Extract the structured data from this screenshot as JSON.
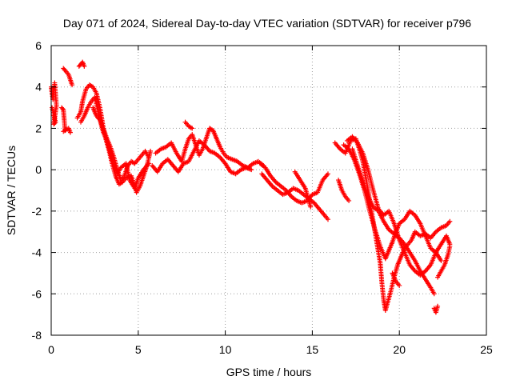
{
  "chart_data": {
    "type": "scatter",
    "title": "Day 071 of 2024, Sidereal Day-to-day VTEC variation (SDTVAR) for receiver p796",
    "xlabel": "GPS time / hours",
    "ylabel": "SDTVAR / TECUs",
    "xlim": [
      0,
      25
    ],
    "ylim": [
      -8,
      6
    ],
    "xticks": [
      0,
      5,
      10,
      15,
      20,
      25
    ],
    "yticks": [
      -8,
      -6,
      -4,
      -2,
      0,
      2,
      4,
      6
    ],
    "grid": true,
    "marker": "+",
    "color": "#ff0000",
    "series": [
      {
        "name": "SDTVAR",
        "tracks": [
          [
            [
              0.0,
              4.0
            ],
            [
              0.1,
              3.4
            ],
            [
              0.2,
              4.2
            ],
            [
              0.3,
              3.1
            ],
            [
              0.15,
              2.2
            ],
            [
              0.25,
              2.3
            ],
            [
              0.05,
              3.0
            ]
          ],
          [
            [
              0.7,
              4.9
            ],
            [
              0.8,
              4.8
            ],
            [
              1.0,
              4.6
            ],
            [
              1.2,
              4.1
            ]
          ],
          [
            [
              0.6,
              3.0
            ],
            [
              0.7,
              2.9
            ],
            [
              0.8,
              1.9
            ],
            [
              0.7,
              1.85
            ],
            [
              1.0,
              2.0
            ],
            [
              1.1,
              1.8
            ]
          ],
          [
            [
              1.6,
              5.0
            ],
            [
              1.7,
              5.1
            ],
            [
              1.8,
              5.2
            ],
            [
              1.9,
              5.0
            ]
          ],
          [
            [
              1.5,
              2.5
            ],
            [
              1.7,
              2.8
            ],
            [
              1.8,
              3.3
            ],
            [
              2.0,
              3.9
            ],
            [
              2.2,
              4.1
            ],
            [
              2.4,
              4.0
            ],
            [
              2.6,
              3.7
            ],
            [
              2.8,
              3.0
            ],
            [
              3.0,
              2.0
            ],
            [
              3.2,
              1.5
            ],
            [
              3.4,
              1.1
            ],
            [
              3.6,
              0.6
            ],
            [
              3.8,
              0.0
            ],
            [
              4.0,
              -0.5
            ],
            [
              4.2,
              -0.3
            ],
            [
              4.4,
              0.2
            ],
            [
              4.6,
              0.4
            ],
            [
              4.8,
              0.3
            ],
            [
              5.0,
              0.5
            ],
            [
              5.2,
              0.7
            ],
            [
              5.4,
              0.9
            ],
            [
              5.6,
              0.6
            ]
          ],
          [
            [
              1.7,
              2.3
            ],
            [
              1.9,
              2.6
            ],
            [
              2.1,
              3.0
            ],
            [
              2.3,
              3.3
            ],
            [
              2.5,
              3.5
            ],
            [
              2.7,
              2.8
            ],
            [
              2.9,
              2.2
            ],
            [
              3.1,
              1.6
            ],
            [
              3.3,
              1.0
            ],
            [
              3.5,
              0.3
            ],
            [
              3.7,
              -0.3
            ],
            [
              3.9,
              -0.7
            ],
            [
              4.1,
              -0.6
            ],
            [
              4.3,
              -0.4
            ],
            [
              4.6,
              -0.3
            ],
            [
              4.9,
              -1.1
            ],
            [
              5.1,
              -0.8
            ],
            [
              5.3,
              -0.3
            ],
            [
              5.5,
              0.2
            ],
            [
              5.7,
              0.9
            ]
          ],
          [
            [
              2.4,
              3.0
            ],
            [
              2.6,
              2.6
            ],
            [
              2.8,
              2.4
            ],
            [
              3.0,
              1.8
            ],
            [
              3.2,
              1.4
            ],
            [
              3.5,
              0.5
            ],
            [
              3.8,
              -0.2
            ],
            [
              4.0,
              0.1
            ],
            [
              4.3,
              0.3
            ],
            [
              4.5,
              -0.5
            ],
            [
              4.8,
              -0.9
            ],
            [
              5.0,
              -0.4
            ],
            [
              5.3,
              0.0
            ],
            [
              5.6,
              0.3
            ]
          ],
          [
            [
              6.0,
              0.8
            ],
            [
              6.3,
              1.0
            ],
            [
              6.6,
              1.1
            ],
            [
              6.9,
              1.3
            ],
            [
              7.2,
              0.8
            ],
            [
              7.5,
              0.4
            ],
            [
              7.7,
              1.0
            ],
            [
              7.9,
              1.5
            ],
            [
              8.1,
              1.7
            ],
            [
              8.3,
              1.2
            ],
            [
              8.5,
              0.7
            ],
            [
              8.7,
              1.0
            ],
            [
              8.9,
              1.5
            ],
            [
              9.1,
              2.0
            ],
            [
              9.3,
              1.9
            ],
            [
              9.5,
              1.5
            ],
            [
              9.7,
              1.1
            ],
            [
              9.9,
              0.8
            ],
            [
              10.1,
              0.6
            ],
            [
              10.4,
              0.5
            ],
            [
              10.7,
              0.4
            ],
            [
              11.0,
              0.2
            ],
            [
              11.3,
              0.1
            ],
            [
              11.6,
              0.3
            ],
            [
              11.9,
              0.4
            ],
            [
              12.2,
              0.2
            ]
          ],
          [
            [
              5.8,
              0.2
            ],
            [
              6.1,
              -0.1
            ],
            [
              6.4,
              0.3
            ],
            [
              6.7,
              0.5
            ],
            [
              7.0,
              0.2
            ],
            [
              7.3,
              -0.1
            ],
            [
              7.6,
              0.3
            ],
            [
              7.9,
              0.4
            ],
            [
              8.2,
              0.9
            ],
            [
              8.5,
              1.4
            ],
            [
              8.8,
              1.2
            ],
            [
              9.1,
              0.9
            ],
            [
              9.4,
              0.8
            ],
            [
              9.7,
              0.6
            ],
            [
              10.0,
              0.3
            ],
            [
              10.3,
              -0.1
            ],
            [
              10.6,
              -0.2
            ],
            [
              10.9,
              0.0
            ],
            [
              11.2,
              0.1
            ],
            [
              11.5,
              0.0
            ]
          ],
          [
            [
              7.7,
              2.3
            ],
            [
              7.9,
              2.1
            ],
            [
              8.1,
              2.0
            ]
          ],
          [
            [
              12.0,
              0.3
            ],
            [
              12.3,
              0.1
            ],
            [
              12.6,
              -0.3
            ],
            [
              12.9,
              -0.6
            ],
            [
              13.2,
              -0.8
            ],
            [
              13.5,
              -1.0
            ],
            [
              13.8,
              -1.3
            ],
            [
              14.1,
              -1.5
            ],
            [
              14.4,
              -1.6
            ],
            [
              14.7,
              -1.5
            ],
            [
              15.0,
              -1.2
            ],
            [
              15.3,
              -1.1
            ],
            [
              15.6,
              -0.5
            ],
            [
              15.9,
              -0.2
            ]
          ],
          [
            [
              12.1,
              -0.2
            ],
            [
              12.4,
              -0.5
            ],
            [
              12.7,
              -0.8
            ],
            [
              13.0,
              -1.0
            ],
            [
              13.3,
              -1.2
            ],
            [
              13.6,
              -1.1
            ],
            [
              13.9,
              -0.9
            ],
            [
              14.2,
              -1.0
            ],
            [
              14.5,
              -1.2
            ],
            [
              14.8,
              -1.4
            ],
            [
              15.1,
              -1.6
            ],
            [
              15.4,
              -1.9
            ],
            [
              15.7,
              -2.2
            ],
            [
              15.9,
              -2.4
            ]
          ],
          [
            [
              14.0,
              -0.1
            ],
            [
              14.3,
              -0.5
            ],
            [
              14.6,
              -0.9
            ],
            [
              14.9,
              -1.8
            ]
          ],
          [
            [
              16.3,
              1.3
            ],
            [
              16.6,
              1.0
            ],
            [
              16.9,
              0.8
            ],
            [
              17.2,
              1.4
            ],
            [
              17.5,
              1.5
            ],
            [
              17.7,
              1.0
            ],
            [
              17.9,
              0.4
            ],
            [
              18.1,
              -0.5
            ],
            [
              18.3,
              -1.5
            ],
            [
              18.5,
              -2.5
            ],
            [
              18.7,
              -3.5
            ],
            [
              18.9,
              -4.5
            ],
            [
              19.0,
              -5.5
            ],
            [
              19.1,
              -6.3
            ],
            [
              19.2,
              -6.8
            ],
            [
              19.3,
              -6.5
            ],
            [
              19.5,
              -5.9
            ],
            [
              19.7,
              -5.2
            ],
            [
              19.9,
              -4.6
            ],
            [
              20.1,
              -4.2
            ],
            [
              20.3,
              -3.8
            ],
            [
              20.5,
              -3.6
            ],
            [
              20.7,
              -3.4
            ],
            [
              20.9,
              -3.0
            ],
            [
              21.2,
              -3.2
            ],
            [
              21.5,
              -3.1
            ],
            [
              21.8,
              -3.3
            ],
            [
              22.1,
              -3.0
            ],
            [
              22.4,
              -2.8
            ],
            [
              22.7,
              -2.7
            ],
            [
              22.9,
              -2.5
            ]
          ],
          [
            [
              16.8,
              1.2
            ],
            [
              17.1,
              1.0
            ],
            [
              17.4,
              0.5
            ],
            [
              17.7,
              -0.2
            ],
            [
              18.0,
              -1.0
            ],
            [
              18.3,
              -2.0
            ],
            [
              18.6,
              -2.9
            ],
            [
              18.9,
              -3.7
            ],
            [
              19.2,
              -4.3
            ],
            [
              19.4,
              -3.9
            ],
            [
              19.6,
              -3.5
            ],
            [
              19.8,
              -3.0
            ],
            [
              20.0,
              -2.6
            ],
            [
              20.3,
              -2.4
            ],
            [
              20.6,
              -2.0
            ],
            [
              20.9,
              -2.2
            ],
            [
              21.2,
              -2.6
            ],
            [
              21.5,
              -3.2
            ],
            [
              21.8,
              -3.8
            ],
            [
              22.1,
              -4.0
            ],
            [
              22.4,
              -4.4
            ]
          ],
          [
            [
              17.3,
              1.0
            ],
            [
              17.6,
              0.2
            ],
            [
              17.9,
              -0.6
            ],
            [
              18.2,
              -1.3
            ],
            [
              18.5,
              -1.8
            ],
            [
              18.8,
              -2.0
            ],
            [
              19.1,
              -2.5
            ],
            [
              19.4,
              -2.9
            ],
            [
              19.7,
              -3.1
            ],
            [
              20.0,
              -3.3
            ],
            [
              20.3,
              -3.6
            ],
            [
              20.6,
              -4.0
            ],
            [
              20.9,
              -4.4
            ],
            [
              21.2,
              -4.9
            ],
            [
              21.5,
              -5.3
            ],
            [
              21.8,
              -5.7
            ],
            [
              22.0,
              -6.0
            ]
          ],
          [
            [
              17.0,
              1.4
            ],
            [
              17.3,
              1.6
            ],
            [
              17.6,
              1.3
            ],
            [
              17.9,
              0.8
            ],
            [
              18.2,
              0.0
            ],
            [
              18.5,
              -1.0
            ],
            [
              18.8,
              -1.9
            ],
            [
              19.1,
              -2.2
            ],
            [
              19.4,
              -2.0
            ],
            [
              19.7,
              -2.6
            ],
            [
              20.0,
              -3.4
            ],
            [
              20.3,
              -4.0
            ],
            [
              20.6,
              -4.6
            ],
            [
              20.9,
              -4.9
            ],
            [
              21.2,
              -5.1
            ],
            [
              21.5,
              -4.9
            ],
            [
              21.8,
              -4.6
            ],
            [
              22.1,
              -4.0
            ],
            [
              22.4,
              -3.6
            ],
            [
              22.7,
              -3.2
            ],
            [
              22.9,
              -3.6
            ]
          ],
          [
            [
              16.5,
              -0.5
            ],
            [
              16.7,
              -1.0
            ],
            [
              16.9,
              -1.3
            ],
            [
              17.1,
              -1.5
            ]
          ],
          [
            [
              19.6,
              -5.0
            ],
            [
              19.8,
              -5.4
            ],
            [
              20.0,
              -5.6
            ]
          ],
          [
            [
              22.0,
              -6.7
            ],
            [
              22.1,
              -6.9
            ],
            [
              22.2,
              -6.6
            ]
          ],
          [
            [
              22.2,
              -5.2
            ],
            [
              22.4,
              -4.9
            ],
            [
              22.6,
              -4.6
            ],
            [
              22.8,
              -4.1
            ],
            [
              22.9,
              -3.7
            ]
          ]
        ]
      }
    ]
  }
}
